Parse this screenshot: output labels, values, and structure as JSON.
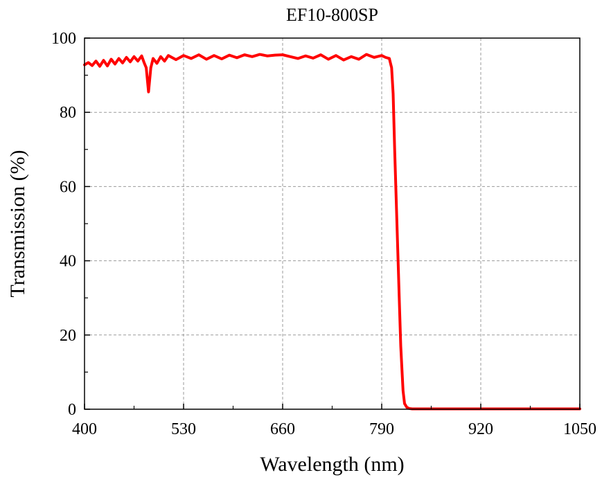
{
  "chart_data": {
    "type": "line",
    "title": "EF10-800SP",
    "xlabel": "Wavelength (nm)",
    "ylabel": "Transmission (%)",
    "xlim": [
      400,
      1050
    ],
    "ylim": [
      0,
      100
    ],
    "xticks": [
      400,
      530,
      660,
      790,
      920,
      1050
    ],
    "yticks": [
      0,
      20,
      40,
      60,
      80,
      100
    ],
    "grid": true,
    "line_color": "#ff0000",
    "series": [
      {
        "x": [
          400,
          405,
          410,
          415,
          420,
          425,
          430,
          435,
          440,
          445,
          450,
          455,
          460,
          465,
          470,
          475,
          478,
          481,
          484,
          487,
          490,
          495,
          500,
          505,
          510,
          520,
          530,
          540,
          550,
          560,
          570,
          580,
          590,
          600,
          610,
          620,
          630,
          640,
          650,
          660,
          670,
          680,
          690,
          700,
          710,
          720,
          730,
          740,
          750,
          760,
          770,
          780,
          790,
          795,
          800,
          803,
          805,
          807,
          810,
          813,
          815,
          818,
          820,
          823,
          826,
          830,
          835,
          840,
          850,
          900,
          950,
          1000,
          1050
        ],
        "y": [
          92.8,
          93.4,
          92.6,
          93.8,
          92.4,
          94.0,
          92.5,
          94.3,
          93.0,
          94.5,
          93.3,
          94.8,
          93.6,
          95.0,
          93.8,
          95.2,
          93.5,
          92.0,
          85.5,
          92.0,
          94.5,
          93.2,
          95.0,
          93.8,
          95.3,
          94.2,
          95.3,
          94.5,
          95.5,
          94.3,
          95.3,
          94.4,
          95.4,
          94.7,
          95.5,
          95.0,
          95.6,
          95.2,
          95.4,
          95.5,
          95.0,
          94.5,
          95.2,
          94.6,
          95.5,
          94.3,
          95.3,
          94.1,
          95.0,
          94.3,
          95.6,
          94.8,
          95.3,
          94.8,
          94.5,
          92.0,
          85.0,
          70.0,
          50.0,
          30.0,
          17.0,
          5.0,
          1.5,
          0.5,
          0.2,
          0.1,
          0.1,
          0.1,
          0.1,
          0.1,
          0.1,
          0.1,
          0.1
        ]
      }
    ]
  }
}
